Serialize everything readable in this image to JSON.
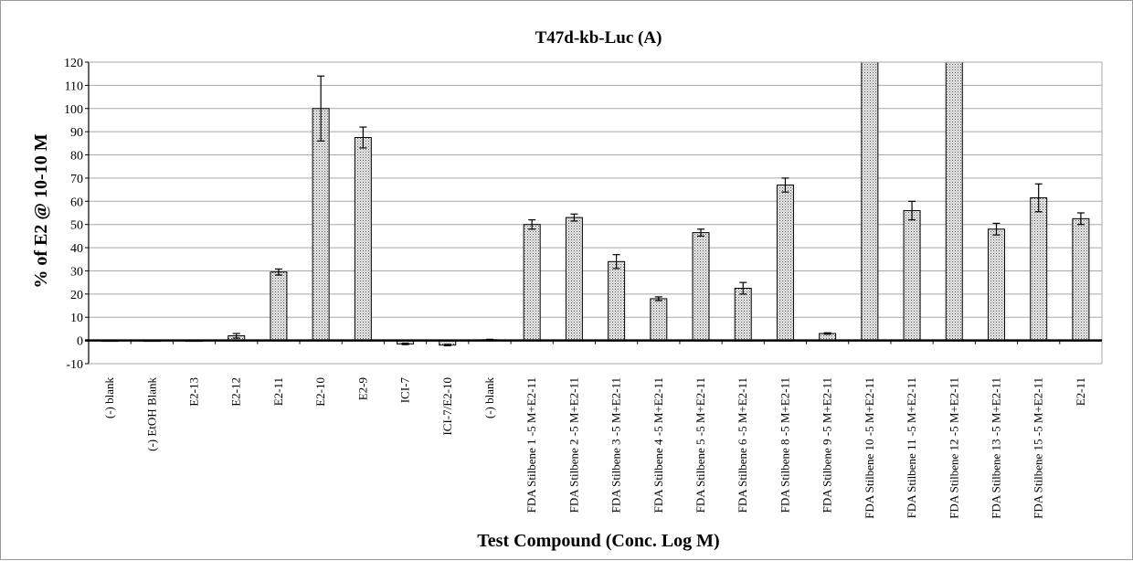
{
  "chart_data": {
    "type": "bar",
    "title": "T47d-kb-Luc (A)",
    "ylabel": "% of E2 @ 10-10 M",
    "xlabel": "Test Compound (Conc. Log M)",
    "ylim": [
      -10,
      120
    ],
    "yticks": [
      -10,
      0,
      10,
      20,
      30,
      40,
      50,
      60,
      70,
      80,
      90,
      100,
      110,
      120
    ],
    "grid": true,
    "legend": "none",
    "bar_fill": "dotted grey",
    "categories": [
      "(-) blank",
      "(-) EtOH Blank",
      "E2-13",
      "E2-12",
      "E2-11",
      "E2-10",
      "E2-9",
      "ICI-7",
      "ICI-7/E2-10",
      "(-) blank",
      "FDA Stilbene 1 -5 M+E2-11",
      "FDA Stilbene 2 -5 M+E2-11",
      "FDA Stilbene 3 -5 M+E2-11",
      "FDA Stilbene 4 -5 M+E2-11",
      "FDA Stilbene 5 -5 M+E2-11",
      "FDA Stilbene 6 -5 M+E2-11",
      "FDA Stilbene 8 -5 M+E2-11",
      "FDA Stilbene 9 -5 M+E2-11",
      "FDA Stilbene 10 -5 M+E2-11",
      "FDA Stilbene 11 -5 M+E2-11",
      "FDA Stilbene 12 -5 M+E2-11",
      "FDA Stilbene 13 -5 M+E2-11",
      "FDA Stilbene 15 -5 M+E2-11",
      "E2-11"
    ],
    "values": [
      0,
      0,
      0,
      2,
      29.5,
      100,
      87.5,
      -1.5,
      -2,
      0.3,
      50,
      53,
      34,
      18,
      46.5,
      22.5,
      67,
      3,
      120,
      56,
      120,
      48,
      61.5,
      52.5
    ],
    "errors": [
      0,
      0,
      0,
      1,
      1.3,
      14,
      4.5,
      0.3,
      0.3,
      0.2,
      2,
      1.5,
      3,
      0.8,
      1.5,
      2.5,
      3,
      0.3,
      0,
      4,
      0,
      2.5,
      6,
      2.5
    ]
  }
}
